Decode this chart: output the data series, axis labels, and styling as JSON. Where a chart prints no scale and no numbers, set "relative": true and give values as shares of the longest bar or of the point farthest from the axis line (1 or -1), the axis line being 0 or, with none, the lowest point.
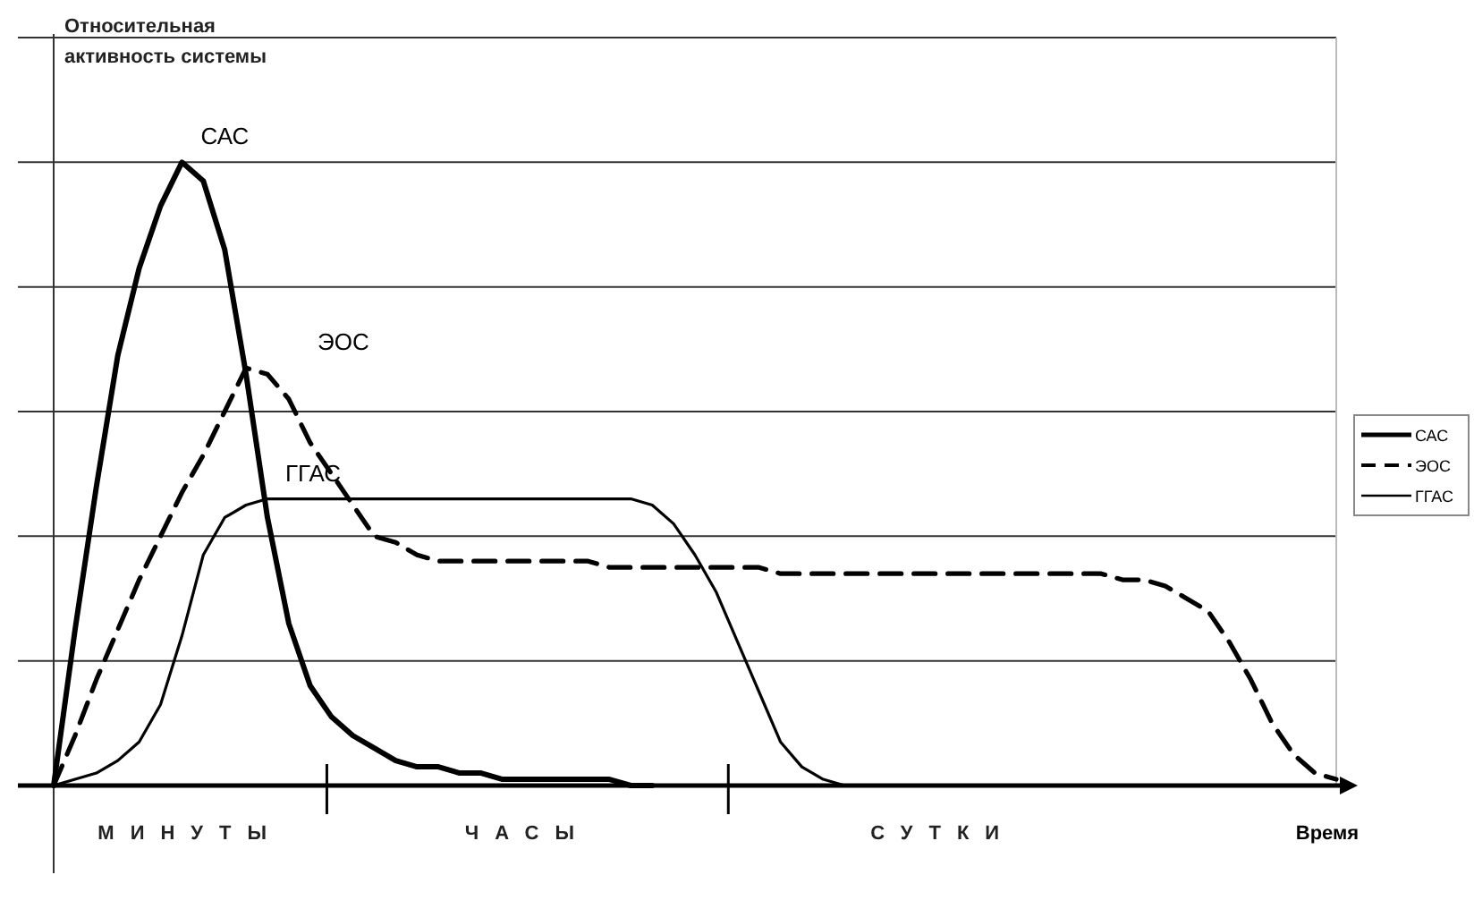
{
  "chart_data": {
    "type": "line",
    "relative": true,
    "ylabel": "Относительная активность системы",
    "xlabel": "Время",
    "categories": [
      null,
      null,
      null,
      null,
      null,
      null,
      null,
      null,
      null,
      null,
      null,
      null,
      null,
      null,
      null,
      null,
      null,
      null,
      null,
      null,
      null,
      null,
      null,
      null,
      null,
      null,
      null,
      null,
      null,
      null,
      null,
      null,
      null,
      null,
      null,
      null,
      null,
      null,
      null,
      null,
      null,
      null,
      null,
      null,
      null,
      null,
      null,
      null,
      null,
      null,
      null,
      null,
      null,
      null,
      null,
      null,
      null,
      null,
      null,
      null,
      null
    ],
    "grid": "y",
    "legend": "right",
    "marker": "none",
    "annotations": [
      "МИНУТЫ",
      "ЧАСЫ",
      "СУТКИ"
    ],
    "series": [
      {
        "name": "САС",
        "color": "#000000",
        "line_style": "solid",
        "values": [
          0,
          0.25,
          0.48,
          0.69,
          0.83,
          0.93,
          1.0,
          0.97,
          0.86,
          0.66,
          0.43,
          0.26,
          0.16,
          0.11,
          0.08,
          0.06,
          0.04,
          0.03,
          0.03,
          0.02,
          0.02,
          0.01,
          0.01,
          0.01,
          0.01,
          0.01,
          0.01,
          0,
          0,
          null,
          null,
          null,
          null,
          null,
          null,
          null,
          null,
          null,
          null,
          null,
          null,
          null,
          null,
          null,
          null,
          null,
          null,
          null,
          null,
          null,
          null,
          null,
          null,
          null,
          null,
          null,
          null,
          null,
          null,
          null,
          null
        ]
      },
      {
        "name": "ЭОС",
        "color": "#000000",
        "line_style": "dashed",
        "values": [
          0,
          0.08,
          0.17,
          0.25,
          0.33,
          0.4,
          0.47,
          0.53,
          0.6,
          0.67,
          0.66,
          0.62,
          0.55,
          0.5,
          0.45,
          0.4,
          0.39,
          0.37,
          0.36,
          0.36,
          0.36,
          0.36,
          0.36,
          0.36,
          0.36,
          0.36,
          0.35,
          0.35,
          0.35,
          0.35,
          0.35,
          0.35,
          0.35,
          0.35,
          0.34,
          0.34,
          0.34,
          0.34,
          0.34,
          0.34,
          0.34,
          0.34,
          0.34,
          0.34,
          0.34,
          0.34,
          0.34,
          0.34,
          0.34,
          0.34,
          0.33,
          0.33,
          0.32,
          0.3,
          0.28,
          0.23,
          0.17,
          0.1,
          0.05,
          0.02,
          0.01
        ]
      },
      {
        "name": "ГГАС",
        "color": "#000000",
        "line_style": "solid",
        "values": [
          0,
          0.01,
          0.02,
          0.04,
          0.07,
          0.13,
          0.24,
          0.37,
          0.43,
          0.45,
          0.46,
          0.46,
          0.46,
          0.46,
          0.46,
          0.46,
          0.46,
          0.46,
          0.46,
          0.46,
          0.46,
          0.46,
          0.46,
          0.46,
          0.46,
          0.46,
          0.46,
          0.46,
          0.45,
          0.42,
          0.37,
          0.31,
          0.23,
          0.15,
          0.07,
          0.03,
          0.01,
          0,
          0,
          0,
          0,
          0,
          null,
          null,
          null,
          null,
          null,
          null,
          null,
          null,
          null,
          null,
          null,
          null,
          null,
          null,
          null,
          null,
          null,
          null,
          null
        ]
      }
    ]
  }
}
